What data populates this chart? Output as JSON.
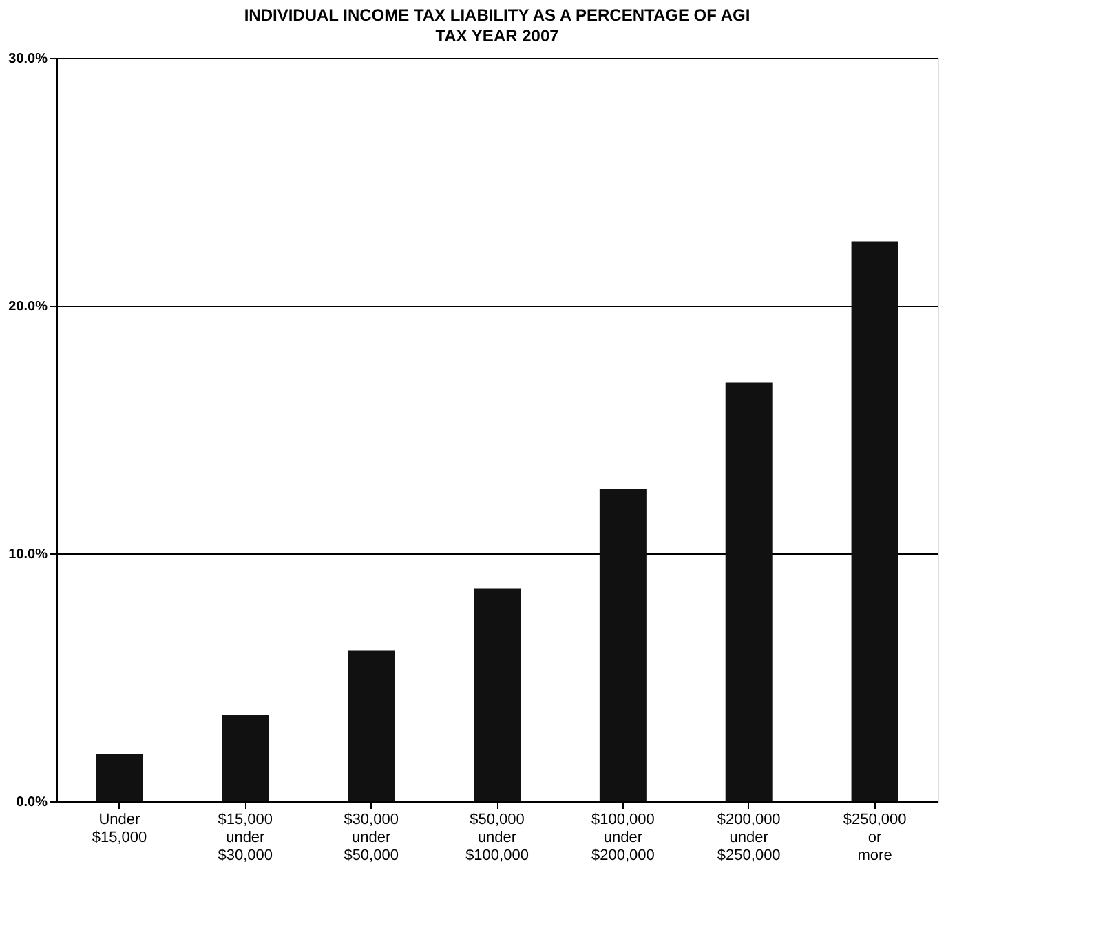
{
  "chart_data": {
    "type": "bar",
    "title": "INDIVIDUAL INCOME TAX LIABILITY AS A PERCENTAGE OF AGI",
    "subtitle": "TAX YEAR 2007",
    "categories": [
      "Under $15,000",
      "$15,000 under $30,000",
      "$30,000 under $50,000",
      "$50,000 under $100,000",
      "$100,000 under $200,000",
      "$200,000 under $250,000",
      "$250,000 or more"
    ],
    "values": [
      1.9,
      3.5,
      6.1,
      8.6,
      12.6,
      16.9,
      22.6
    ],
    "color": "#111111",
    "ylim": [
      0,
      30
    ],
    "yticks": [
      {
        "value": 0,
        "label": "0.0%"
      },
      {
        "value": 10,
        "label": "10.0%"
      },
      {
        "value": 20,
        "label": "20.0%"
      },
      {
        "value": 30,
        "label": "30.0%"
      }
    ],
    "grid": "y"
  }
}
